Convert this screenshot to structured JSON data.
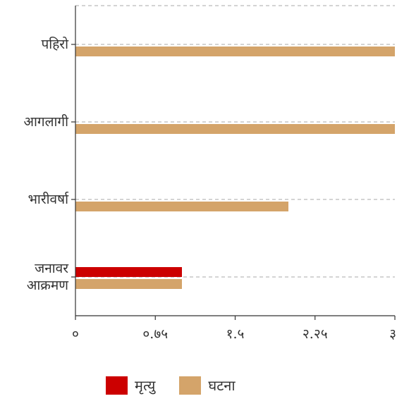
{
  "chart_data": {
    "type": "bar",
    "orientation": "horizontal",
    "categories": [
      [
        "पहिरो"
      ],
      [
        "आगलागी"
      ],
      [
        "भारीवर्षा"
      ],
      [
        "जनावर",
        "आक्रमण"
      ]
    ],
    "series": [
      {
        "name": "मृत्यु",
        "color": "#cc0000",
        "values": [
          0,
          0,
          0,
          1
        ]
      },
      {
        "name": "घटना",
        "color": "#d4a46a",
        "values": [
          3,
          3,
          2,
          1
        ]
      }
    ],
    "xlim": [
      0,
      3
    ],
    "xticks": [
      0,
      0.75,
      1.5,
      2.25,
      3
    ],
    "xtick_labels": [
      "०",
      "०.७५",
      "१.५",
      "२.२५",
      "३"
    ],
    "grid": "horizontal dashed",
    "legend_position": "bottom"
  }
}
